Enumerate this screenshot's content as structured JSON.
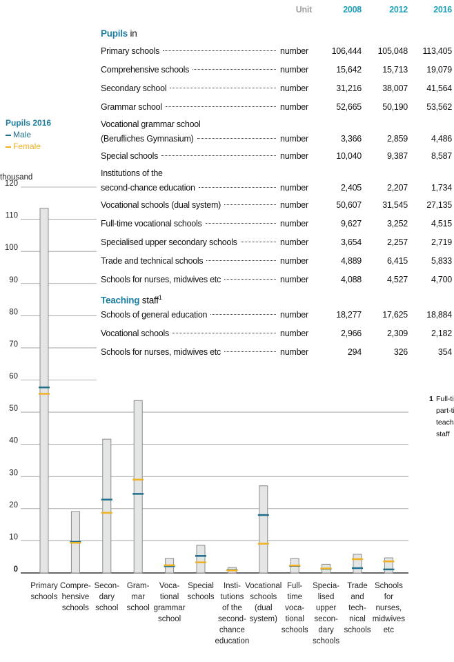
{
  "table": {
    "header": {
      "unit": "Unit",
      "years": [
        "2008",
        "2012",
        "2016"
      ]
    },
    "sections": [
      {
        "title_bold": "Pupils",
        "title_rest": " in",
        "rows": [
          {
            "label": [
              "Primary schools"
            ],
            "unit": "number",
            "values": [
              "106,444",
              "105,048",
              "113,405"
            ]
          },
          {
            "label": [
              "Comprehensive schools"
            ],
            "unit": "number",
            "values": [
              "15,642",
              "15,713",
              "19,079"
            ]
          },
          {
            "label": [
              "Secondary school"
            ],
            "unit": "number",
            "values": [
              "31,216",
              "38,007",
              "41,564"
            ]
          },
          {
            "label": [
              "Grammar school"
            ],
            "unit": "number",
            "values": [
              "52,665",
              "50,190",
              "53,562"
            ]
          },
          {
            "label": [
              "Vocational grammar school",
              "(Berufliches Gymnasium)"
            ],
            "unit": "number",
            "values": [
              "3,366",
              "2,859",
              "4,486"
            ]
          },
          {
            "label": [
              "Special schools"
            ],
            "unit": "number",
            "values": [
              "10,040",
              "9,387",
              "8,587"
            ]
          },
          {
            "label": [
              "Institutions of the",
              "second-chance education"
            ],
            "unit": "number",
            "values": [
              "2,405",
              "2,207",
              "1,734"
            ]
          },
          {
            "label": [
              "Vocational schools (dual system)"
            ],
            "unit": "number",
            "values": [
              "50,607",
              "31,545",
              "27,135"
            ]
          },
          {
            "label": [
              "Full-time vocational schools"
            ],
            "unit": "number",
            "values": [
              "9,627",
              "3,252",
              "4,515"
            ]
          },
          {
            "label": [
              "Specialised upper secondary schools"
            ],
            "unit": "number",
            "values": [
              "3,654",
              "2,257",
              "2,719"
            ]
          },
          {
            "label": [
              "Trade and technical schools"
            ],
            "unit": "number",
            "values": [
              "4,889",
              "6,415",
              "5,833"
            ]
          },
          {
            "label": [
              "Schools for nurses, midwives etc"
            ],
            "unit": "number",
            "values": [
              "4,088",
              "4,527",
              "4,700"
            ]
          }
        ]
      },
      {
        "title_bold": "Teaching",
        "title_rest": " staff",
        "note": "1",
        "rows": [
          {
            "label": [
              "Schools of general education"
            ],
            "unit": "number",
            "values": [
              "18,277",
              "17,625",
              "18,884"
            ]
          },
          {
            "label": [
              "Vocational schools"
            ],
            "unit": "number",
            "values": [
              "2,966",
              "2,309",
              "2,182"
            ]
          },
          {
            "label": [
              "Schools for nurses, midwives etc"
            ],
            "unit": "number",
            "values": [
              "294",
              "326",
              "354"
            ]
          }
        ]
      }
    ],
    "footnote": {
      "marker": "1",
      "text": "Full-time and part-time teaching staff"
    }
  },
  "chart_data": {
    "type": "bar",
    "legend_title": "Pupils 2016",
    "unit_label": "thousand",
    "categories": [
      [
        "Primary",
        "schools"
      ],
      [
        "Compre-",
        "hensive",
        "schools"
      ],
      [
        "Secon-",
        "dary",
        "school"
      ],
      [
        "Gram-",
        "mar",
        "school"
      ],
      [
        "Voca-",
        "tional",
        "grammar",
        "school"
      ],
      [
        "Special",
        "schools"
      ],
      [
        "Insti-",
        "tutions",
        "of the",
        "second-",
        "chance",
        "education"
      ],
      [
        "Vocational",
        "schools",
        "(dual",
        "system)"
      ],
      [
        "Full-",
        "time",
        "voca-",
        "tional",
        "schools"
      ],
      [
        "Specia-",
        "lised",
        "upper",
        "secon-",
        "dary",
        "schools"
      ],
      [
        "Trade",
        "and",
        "tech-",
        "nical",
        "schools"
      ],
      [
        "Schools",
        "for",
        "nurses,",
        "midwives",
        "etc"
      ]
    ],
    "values": [
      113.4,
      19.1,
      41.6,
      53.6,
      4.5,
      8.6,
      1.7,
      27.1,
      4.5,
      2.7,
      5.8,
      4.7
    ],
    "color": "#e4e6e6",
    "series": [
      {
        "name": "Male",
        "color": "#1f6e8c",
        "values": [
          57.7,
          9.7,
          22.8,
          24.6,
          2.1,
          5.3,
          0.9,
          18.0,
          2.2,
          1.3,
          1.5,
          1.1
        ]
      },
      {
        "name": "Female",
        "color": "#f0b020",
        "values": [
          55.7,
          9.4,
          18.7,
          29.0,
          2.4,
          3.3,
          0.8,
          9.1,
          2.3,
          1.4,
          4.3,
          3.6
        ]
      }
    ],
    "ylim": [
      0,
      120
    ],
    "yticks": [
      0,
      10,
      20,
      30,
      40,
      50,
      60,
      70,
      80,
      90,
      100,
      110,
      120
    ],
    "grid": true
  }
}
